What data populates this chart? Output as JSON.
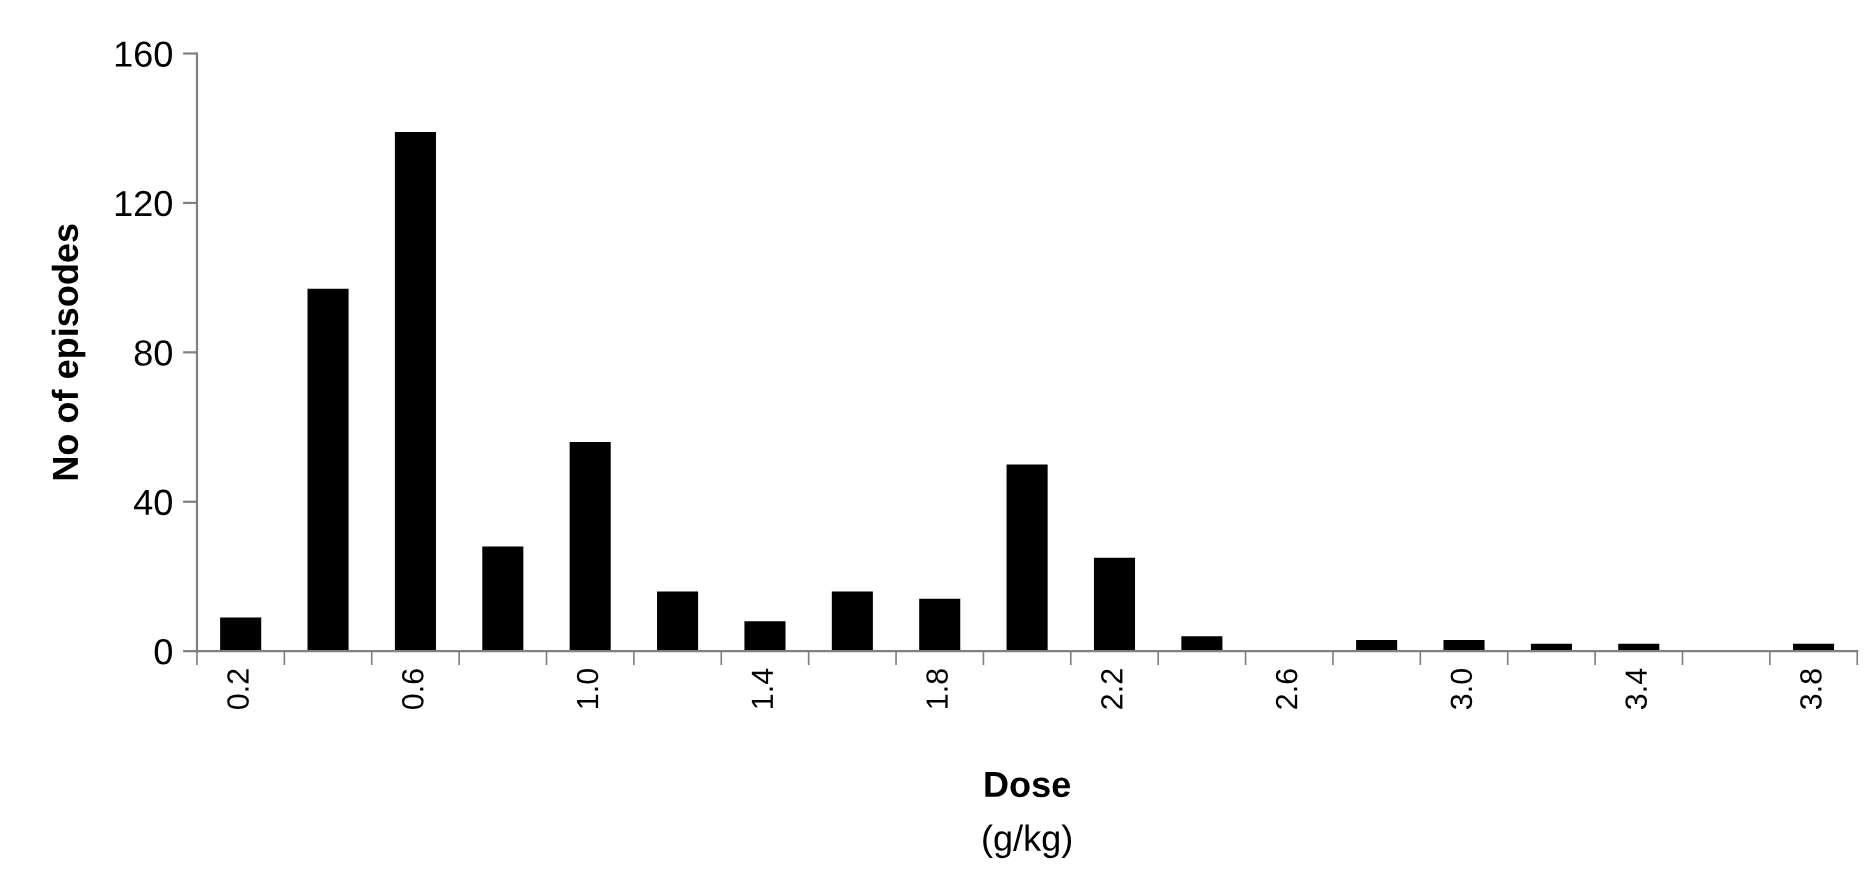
{
  "chart_data": {
    "type": "bar",
    "categories": [
      "0.2",
      null,
      "0.6",
      null,
      "1.0",
      null,
      "1.4",
      null,
      "1.8",
      null,
      "2.2",
      null,
      "2.6",
      null,
      "3.0",
      null,
      "3.4",
      null,
      "3.8"
    ],
    "values": [
      9,
      97,
      139,
      28,
      56,
      16,
      8,
      16,
      14,
      50,
      25,
      4,
      0,
      3,
      3,
      2,
      2,
      0,
      2
    ],
    "color": "#000000",
    "xlabel": "Dose\n(g/kg)",
    "ylabel": "No of episodes",
    "ylim": [
      0,
      160
    ],
    "yticks": [
      0,
      40,
      80,
      120,
      160
    ],
    "grid": false,
    "legend": false
  }
}
